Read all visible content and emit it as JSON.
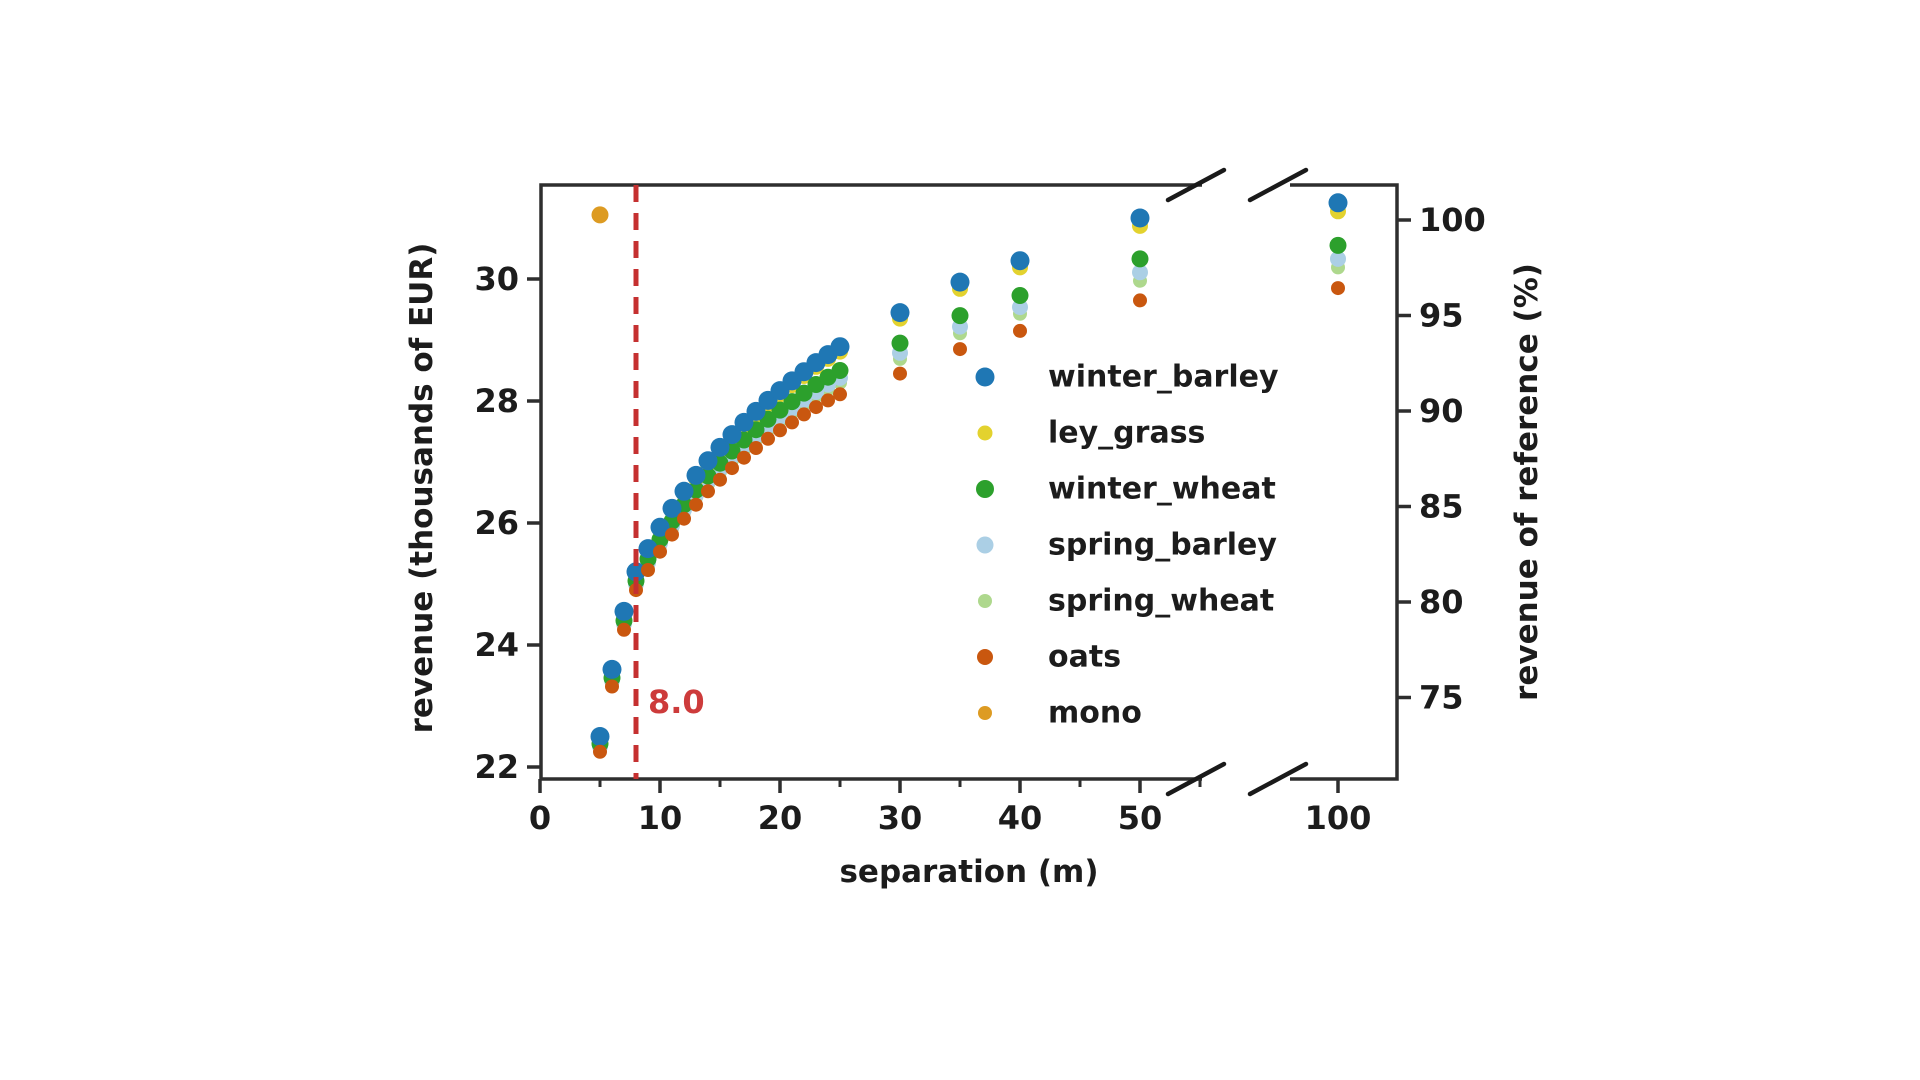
{
  "figure": {
    "background": "#ffffff",
    "axis_color": "#2e2e2e",
    "text_color": "#1c1c1c"
  },
  "chart_data": {
    "type": "scatter",
    "title": "",
    "xlabel": "separation (m)",
    "ylabel_left": "revenue (thousands of EUR)",
    "ylabel_right": "revenue of reference (%)",
    "grid": false,
    "legend_position": "center-right, frameless",
    "x_axis": {
      "major_ticks": [
        0,
        10,
        20,
        30,
        40,
        50,
        100
      ],
      "minor_ticks": [
        5,
        15,
        25,
        35,
        45,
        55
      ],
      "break_between": [
        55,
        95
      ]
    },
    "y_axis_left": {
      "ticks": [
        22,
        24,
        26,
        28,
        30
      ],
      "range": [
        21.8,
        31.54
      ]
    },
    "y_axis_right": {
      "ticks": [
        75,
        80,
        85,
        90,
        95,
        100
      ],
      "range": [
        70.7,
        101.8
      ]
    },
    "vline": {
      "x": 8.0,
      "label": "8.0",
      "color": "#c53030",
      "label_color": "#cd3b3b",
      "style": "dashed"
    },
    "series": [
      {
        "name": "winter_barley",
        "color": "#1f77b4",
        "marker_radius": 9.5,
        "legend_radius": 9.5,
        "x": [
          5,
          6,
          7,
          8,
          9,
          10,
          11,
          12,
          13,
          14,
          15,
          16,
          17,
          18,
          19,
          20,
          21,
          22,
          23,
          24,
          25,
          30,
          35,
          40,
          50,
          100
        ],
        "y": [
          22.5,
          23.6,
          24.55,
          25.2,
          25.58,
          25.93,
          26.24,
          26.52,
          26.78,
          27.02,
          27.24,
          27.45,
          27.65,
          27.83,
          28.01,
          28.17,
          28.33,
          28.48,
          28.63,
          28.76,
          28.89,
          29.45,
          29.95,
          30.3,
          31.0,
          31.25
        ]
      },
      {
        "name": "ley_grass",
        "color": "#e3d22e",
        "marker_radius": 8,
        "legend_radius": 7.5,
        "x": [
          5,
          6,
          7,
          8,
          9,
          10,
          11,
          12,
          13,
          14,
          15,
          16,
          17,
          18,
          19,
          20,
          21,
          22,
          23,
          24,
          25,
          30,
          35,
          40,
          50,
          100
        ],
        "y": [
          22.48,
          23.57,
          24.52,
          25.17,
          25.55,
          25.89,
          26.2,
          26.48,
          26.73,
          26.97,
          27.19,
          27.4,
          27.59,
          27.77,
          27.95,
          28.11,
          28.26,
          28.41,
          28.56,
          28.69,
          28.81,
          29.35,
          29.84,
          30.19,
          30.87,
          31.11
        ]
      },
      {
        "name": "winter_wheat",
        "color": "#2ca02c",
        "marker_radius": 8.5,
        "legend_radius": 9,
        "x": [
          5,
          6,
          7,
          8,
          9,
          10,
          11,
          12,
          13,
          14,
          15,
          16,
          17,
          18,
          19,
          20,
          21,
          22,
          23,
          24,
          25,
          30,
          35,
          40,
          50,
          100
        ],
        "y": [
          22.38,
          23.46,
          24.4,
          25.05,
          25.41,
          25.73,
          26.03,
          26.3,
          26.54,
          26.77,
          26.98,
          27.18,
          27.36,
          27.53,
          27.7,
          27.85,
          27.99,
          28.13,
          28.27,
          28.39,
          28.5,
          28.95,
          29.4,
          29.73,
          30.33,
          30.55
        ]
      },
      {
        "name": "spring_barley",
        "color": "#abcfe5",
        "marker_radius": 8,
        "legend_radius": 8.5,
        "x": [
          5,
          6,
          7,
          8,
          9,
          10,
          11,
          12,
          13,
          14,
          15,
          16,
          17,
          18,
          19,
          20,
          21,
          22,
          23,
          24,
          25,
          30,
          35,
          40,
          50,
          100
        ],
        "y": [
          22.34,
          23.42,
          24.35,
          25.0,
          25.35,
          25.67,
          25.96,
          26.22,
          26.46,
          26.69,
          26.89,
          27.09,
          27.27,
          27.43,
          27.59,
          27.74,
          27.88,
          28.02,
          28.15,
          28.27,
          28.38,
          28.79,
          29.22,
          29.54,
          30.11,
          30.33
        ]
      },
      {
        "name": "spring_wheat",
        "color": "#aed88d",
        "marker_radius": 7,
        "legend_radius": 7,
        "x": [
          5,
          6,
          7,
          8,
          9,
          10,
          11,
          12,
          13,
          14,
          15,
          16,
          17,
          18,
          19,
          20,
          21,
          22,
          23,
          24,
          25,
          30,
          35,
          40,
          50,
          100
        ],
        "y": [
          22.31,
          23.39,
          24.32,
          24.97,
          25.31,
          25.63,
          25.91,
          26.18,
          26.42,
          26.64,
          26.84,
          27.03,
          27.21,
          27.37,
          27.53,
          27.68,
          27.81,
          27.95,
          28.08,
          28.19,
          28.3,
          28.69,
          29.11,
          29.43,
          29.97,
          30.19
        ]
      },
      {
        "name": "oats",
        "color": "#c9570f",
        "marker_radius": 7,
        "legend_radius": 8,
        "x": [
          5,
          6,
          7,
          8,
          9,
          10,
          11,
          12,
          13,
          14,
          15,
          16,
          17,
          18,
          19,
          20,
          21,
          22,
          23,
          24,
          25,
          30,
          35,
          40,
          50,
          100
        ],
        "y": [
          22.25,
          23.32,
          24.25,
          24.9,
          25.23,
          25.53,
          25.81,
          26.07,
          26.3,
          26.52,
          26.71,
          26.9,
          27.07,
          27.23,
          27.38,
          27.52,
          27.65,
          27.78,
          27.9,
          28.01,
          28.11,
          28.45,
          28.85,
          29.15,
          29.65,
          29.85
        ]
      },
      {
        "name": "mono",
        "color": "#dd9b22",
        "marker_radius": 8.5,
        "legend_radius": 7,
        "x": [
          5
        ],
        "y": [
          31.05
        ]
      }
    ]
  }
}
